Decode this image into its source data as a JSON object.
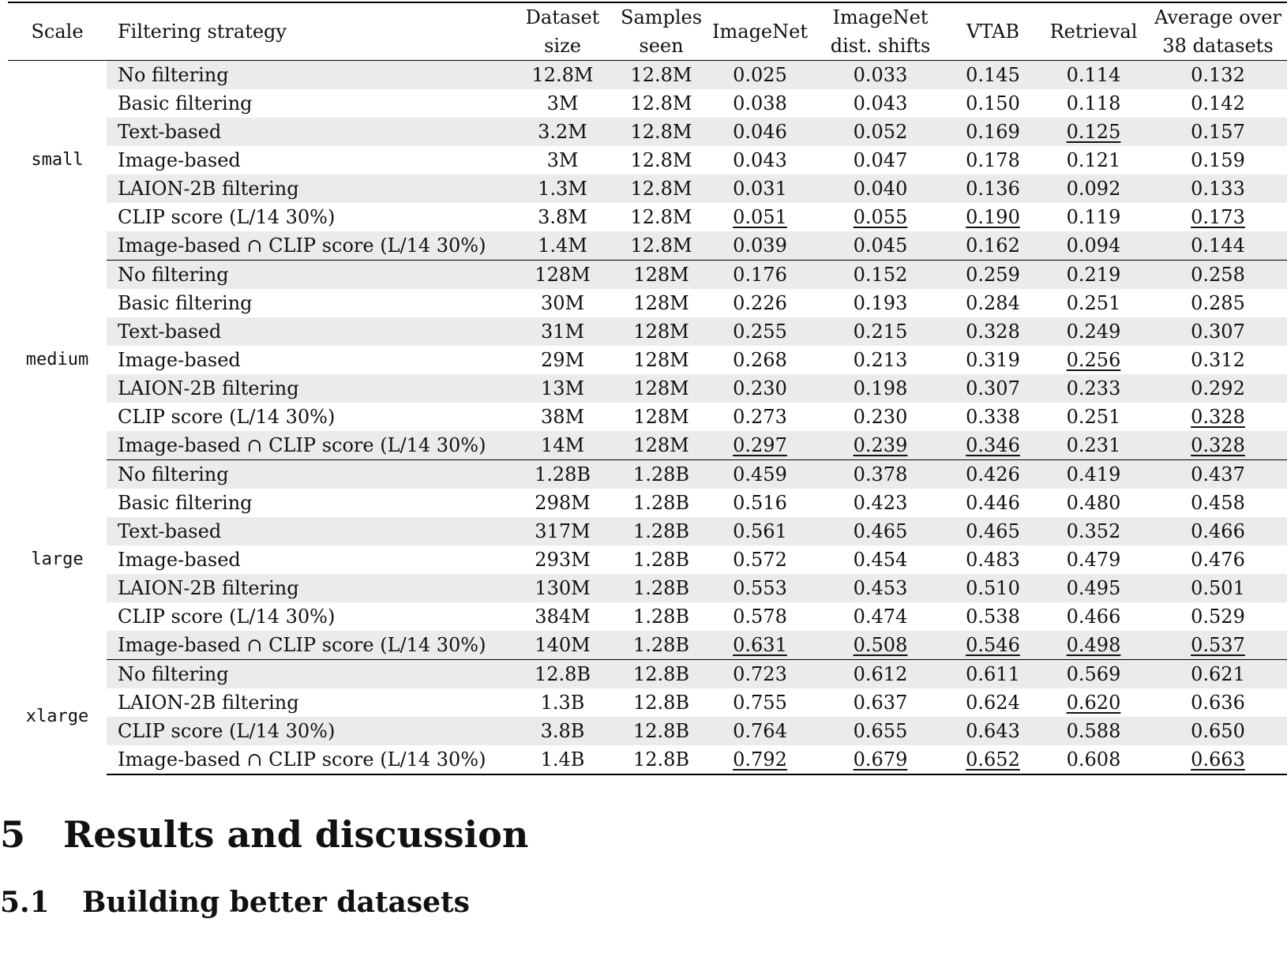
{
  "table": {
    "headers": {
      "scale": "Scale",
      "filter": "Filtering strategy",
      "dataset_size": [
        "Dataset",
        "size"
      ],
      "samples_seen": [
        "Samples",
        "seen"
      ],
      "imagenet": "ImageNet",
      "imagenet_shifts": [
        "ImageNet",
        "dist. shifts"
      ],
      "vtab": "VTAB",
      "retrieval": "Retrieval",
      "average": [
        "Average over",
        "38 datasets"
      ]
    },
    "groups": [
      {
        "scale": "small",
        "rows": [
          {
            "filter": "No filtering",
            "dataset_size": "12.8M",
            "samples_seen": "12.8M",
            "imagenet": "0.025",
            "imagenet_shifts": "0.033",
            "vtab": "0.145",
            "retrieval": "0.114",
            "average": "0.132",
            "underline": []
          },
          {
            "filter": "Basic filtering",
            "dataset_size": "3M",
            "samples_seen": "12.8M",
            "imagenet": "0.038",
            "imagenet_shifts": "0.043",
            "vtab": "0.150",
            "retrieval": "0.118",
            "average": "0.142",
            "underline": []
          },
          {
            "filter": "Text-based",
            "dataset_size": "3.2M",
            "samples_seen": "12.8M",
            "imagenet": "0.046",
            "imagenet_shifts": "0.052",
            "vtab": "0.169",
            "retrieval": "0.125",
            "average": "0.157",
            "underline": [
              "retrieval"
            ]
          },
          {
            "filter": "Image-based",
            "dataset_size": "3M",
            "samples_seen": "12.8M",
            "imagenet": "0.043",
            "imagenet_shifts": "0.047",
            "vtab": "0.178",
            "retrieval": "0.121",
            "average": "0.159",
            "underline": []
          },
          {
            "filter": "LAION-2B filtering",
            "dataset_size": "1.3M",
            "samples_seen": "12.8M",
            "imagenet": "0.031",
            "imagenet_shifts": "0.040",
            "vtab": "0.136",
            "retrieval": "0.092",
            "average": "0.133",
            "underline": []
          },
          {
            "filter": "CLIP score (L/14 30%)",
            "dataset_size": "3.8M",
            "samples_seen": "12.8M",
            "imagenet": "0.051",
            "imagenet_shifts": "0.055",
            "vtab": "0.190",
            "retrieval": "0.119",
            "average": "0.173",
            "underline": [
              "imagenet",
              "imagenet_shifts",
              "vtab",
              "average"
            ]
          },
          {
            "filter": "Image-based ∩ CLIP score (L/14 30%)",
            "dataset_size": "1.4M",
            "samples_seen": "12.8M",
            "imagenet": "0.039",
            "imagenet_shifts": "0.045",
            "vtab": "0.162",
            "retrieval": "0.094",
            "average": "0.144",
            "underline": []
          }
        ]
      },
      {
        "scale": "medium",
        "rows": [
          {
            "filter": "No filtering",
            "dataset_size": "128M",
            "samples_seen": "128M",
            "imagenet": "0.176",
            "imagenet_shifts": "0.152",
            "vtab": "0.259",
            "retrieval": "0.219",
            "average": "0.258",
            "underline": []
          },
          {
            "filter": "Basic filtering",
            "dataset_size": "30M",
            "samples_seen": "128M",
            "imagenet": "0.226",
            "imagenet_shifts": "0.193",
            "vtab": "0.284",
            "retrieval": "0.251",
            "average": "0.285",
            "underline": []
          },
          {
            "filter": "Text-based",
            "dataset_size": "31M",
            "samples_seen": "128M",
            "imagenet": "0.255",
            "imagenet_shifts": "0.215",
            "vtab": "0.328",
            "retrieval": "0.249",
            "average": "0.307",
            "underline": []
          },
          {
            "filter": "Image-based",
            "dataset_size": "29M",
            "samples_seen": "128M",
            "imagenet": "0.268",
            "imagenet_shifts": "0.213",
            "vtab": "0.319",
            "retrieval": "0.256",
            "average": "0.312",
            "underline": [
              "retrieval"
            ]
          },
          {
            "filter": "LAION-2B filtering",
            "dataset_size": "13M",
            "samples_seen": "128M",
            "imagenet": "0.230",
            "imagenet_shifts": "0.198",
            "vtab": "0.307",
            "retrieval": "0.233",
            "average": "0.292",
            "underline": []
          },
          {
            "filter": "CLIP score (L/14 30%)",
            "dataset_size": "38M",
            "samples_seen": "128M",
            "imagenet": "0.273",
            "imagenet_shifts": "0.230",
            "vtab": "0.338",
            "retrieval": "0.251",
            "average": "0.328",
            "underline": [
              "average"
            ]
          },
          {
            "filter": "Image-based ∩ CLIP score (L/14 30%)",
            "dataset_size": "14M",
            "samples_seen": "128M",
            "imagenet": "0.297",
            "imagenet_shifts": "0.239",
            "vtab": "0.346",
            "retrieval": "0.231",
            "average": "0.328",
            "underline": [
              "imagenet",
              "imagenet_shifts",
              "vtab",
              "average"
            ]
          }
        ]
      },
      {
        "scale": "large",
        "rows": [
          {
            "filter": "No filtering",
            "dataset_size": "1.28B",
            "samples_seen": "1.28B",
            "imagenet": "0.459",
            "imagenet_shifts": "0.378",
            "vtab": "0.426",
            "retrieval": "0.419",
            "average": "0.437",
            "underline": []
          },
          {
            "filter": "Basic filtering",
            "dataset_size": "298M",
            "samples_seen": "1.28B",
            "imagenet": "0.516",
            "imagenet_shifts": "0.423",
            "vtab": "0.446",
            "retrieval": "0.480",
            "average": "0.458",
            "underline": []
          },
          {
            "filter": "Text-based",
            "dataset_size": "317M",
            "samples_seen": "1.28B",
            "imagenet": "0.561",
            "imagenet_shifts": "0.465",
            "vtab": "0.465",
            "retrieval": "0.352",
            "average": "0.466",
            "underline": []
          },
          {
            "filter": "Image-based",
            "dataset_size": "293M",
            "samples_seen": "1.28B",
            "imagenet": "0.572",
            "imagenet_shifts": "0.454",
            "vtab": "0.483",
            "retrieval": "0.479",
            "average": "0.476",
            "underline": []
          },
          {
            "filter": "LAION-2B filtering",
            "dataset_size": "130M",
            "samples_seen": "1.28B",
            "imagenet": "0.553",
            "imagenet_shifts": "0.453",
            "vtab": "0.510",
            "retrieval": "0.495",
            "average": "0.501",
            "underline": []
          },
          {
            "filter": "CLIP score (L/14 30%)",
            "dataset_size": "384M",
            "samples_seen": "1.28B",
            "imagenet": "0.578",
            "imagenet_shifts": "0.474",
            "vtab": "0.538",
            "retrieval": "0.466",
            "average": "0.529",
            "underline": []
          },
          {
            "filter": "Image-based ∩ CLIP score (L/14 30%)",
            "dataset_size": "140M",
            "samples_seen": "1.28B",
            "imagenet": "0.631",
            "imagenet_shifts": "0.508",
            "vtab": "0.546",
            "retrieval": "0.498",
            "average": "0.537",
            "underline": [
              "imagenet",
              "imagenet_shifts",
              "vtab",
              "retrieval",
              "average"
            ]
          }
        ]
      },
      {
        "scale": "xlarge",
        "rows": [
          {
            "filter": "No filtering",
            "dataset_size": "12.8B",
            "samples_seen": "12.8B",
            "imagenet": "0.723",
            "imagenet_shifts": "0.612",
            "vtab": "0.611",
            "retrieval": "0.569",
            "average": "0.621",
            "underline": []
          },
          {
            "filter": "LAION-2B filtering",
            "dataset_size": "1.3B",
            "samples_seen": "12.8B",
            "imagenet": "0.755",
            "imagenet_shifts": "0.637",
            "vtab": "0.624",
            "retrieval": "0.620",
            "average": "0.636",
            "underline": [
              "retrieval"
            ]
          },
          {
            "filter": "CLIP score (L/14 30%)",
            "dataset_size": "3.8B",
            "samples_seen": "12.8B",
            "imagenet": "0.764",
            "imagenet_shifts": "0.655",
            "vtab": "0.643",
            "retrieval": "0.588",
            "average": "0.650",
            "underline": []
          },
          {
            "filter": "Image-based ∩ CLIP score (L/14 30%)",
            "dataset_size": "1.4B",
            "samples_seen": "12.8B",
            "imagenet": "0.792",
            "imagenet_shifts": "0.679",
            "vtab": "0.652",
            "retrieval": "0.608",
            "average": "0.663",
            "underline": [
              "imagenet",
              "imagenet_shifts",
              "vtab",
              "average"
            ]
          }
        ]
      }
    ]
  },
  "section": {
    "number": "5",
    "title": "Results and discussion"
  },
  "subsection": {
    "number": "5.1",
    "title": "Building better datasets"
  }
}
